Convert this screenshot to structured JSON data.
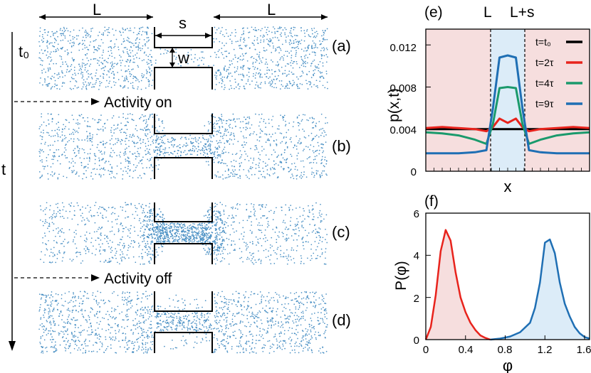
{
  "labels": {
    "L_left": "L",
    "s": "s",
    "L_right": "L",
    "t0": "t₀",
    "w": "w",
    "t": "t",
    "activity_on": "Activity on",
    "activity_off": "Activity off",
    "panel_a": "(a)",
    "panel_b": "(b)",
    "panel_c": "(c)",
    "panel_d": "(d)"
  },
  "colors": {
    "particle": "#4a90c4",
    "red": "#e8231c",
    "green": "#1a9a6c",
    "blue": "#1f6fb4",
    "black": "#000000",
    "pink_fill": "#f6dede",
    "blue_fill": "#dcecf8"
  },
  "chart_data": [
    {
      "panel": "(e)",
      "type": "line",
      "xlabel": "x",
      "ylabel": "p(x,t)",
      "ylim": [
        0,
        0.0135
      ],
      "yticks": [
        "0",
        "0.004",
        "0.008",
        "0.012"
      ],
      "ytick_values": [
        0,
        0.004,
        0.008,
        0.012
      ],
      "region_labels": [
        "L",
        "L+s"
      ],
      "legend_position": "top-right",
      "series": [
        {
          "name": "t=t₀",
          "color": "#000000",
          "x": [
            0,
            0.4,
            0.4,
            0.6,
            0.6,
            1
          ],
          "values": [
            0.004,
            0.004,
            0.004,
            0.004,
            0.004,
            0.004
          ]
        },
        {
          "name": "t=2τ",
          "color": "#e8231c",
          "x": [
            0,
            0.1,
            0.2,
            0.3,
            0.37,
            0.41,
            0.45,
            0.5,
            0.55,
            0.59,
            0.63,
            0.7,
            0.8,
            0.9,
            1
          ],
          "values": [
            0.0041,
            0.0042,
            0.0041,
            0.004,
            0.0038,
            0.0042,
            0.005,
            0.0046,
            0.005,
            0.0042,
            0.0038,
            0.004,
            0.0041,
            0.0042,
            0.0041
          ]
        },
        {
          "name": "t=4τ",
          "color": "#1a9a6c",
          "x": [
            0,
            0.1,
            0.2,
            0.3,
            0.37,
            0.41,
            0.45,
            0.5,
            0.55,
            0.59,
            0.63,
            0.7,
            0.8,
            0.9,
            1
          ],
          "values": [
            0.0037,
            0.0036,
            0.0034,
            0.003,
            0.0026,
            0.0045,
            0.0079,
            0.008,
            0.0079,
            0.0045,
            0.0026,
            0.003,
            0.0034,
            0.0036,
            0.0037
          ]
        },
        {
          "name": "t=9τ",
          "color": "#1f6fb4",
          "x": [
            0,
            0.1,
            0.2,
            0.3,
            0.37,
            0.41,
            0.45,
            0.5,
            0.55,
            0.59,
            0.63,
            0.7,
            0.8,
            0.9,
            1
          ],
          "values": [
            0.0017,
            0.0017,
            0.0017,
            0.0018,
            0.002,
            0.006,
            0.0108,
            0.011,
            0.0108,
            0.006,
            0.002,
            0.0018,
            0.0017,
            0.0017,
            0.0017
          ]
        }
      ]
    },
    {
      "panel": "(f)",
      "type": "area",
      "xlabel": "φ",
      "ylabel": "P(φ)",
      "xlim": [
        0,
        1.65
      ],
      "ylim": [
        0,
        6
      ],
      "xticks": [
        "0",
        "0.4",
        "0.8",
        "1.2",
        "1.6"
      ],
      "xtick_values": [
        0,
        0.4,
        0.8,
        1.2,
        1.6
      ],
      "yticks": [
        "0",
        "2",
        "4",
        "6"
      ],
      "ytick_values": [
        0,
        2,
        4,
        6
      ],
      "series": [
        {
          "color": "#e8231c",
          "x": [
            0,
            0.05,
            0.1,
            0.15,
            0.2,
            0.25,
            0.3,
            0.35,
            0.4,
            0.45,
            0.5,
            0.55,
            0.6,
            0.65
          ],
          "values": [
            0,
            0.6,
            2.1,
            4.2,
            5.2,
            4.7,
            3.2,
            2.0,
            1.3,
            0.8,
            0.45,
            0.2,
            0.08,
            0
          ]
        },
        {
          "color": "#1f6fb4",
          "x": [
            0.65,
            0.75,
            0.85,
            0.95,
            1.05,
            1.1,
            1.15,
            1.2,
            1.25,
            1.3,
            1.35,
            1.4,
            1.45,
            1.5,
            1.55,
            1.6,
            1.65
          ],
          "values": [
            0,
            0.05,
            0.15,
            0.35,
            0.8,
            1.5,
            2.7,
            4.6,
            4.75,
            4.1,
            2.7,
            1.7,
            1.1,
            0.6,
            0.3,
            0.12,
            0.05
          ]
        }
      ]
    }
  ]
}
